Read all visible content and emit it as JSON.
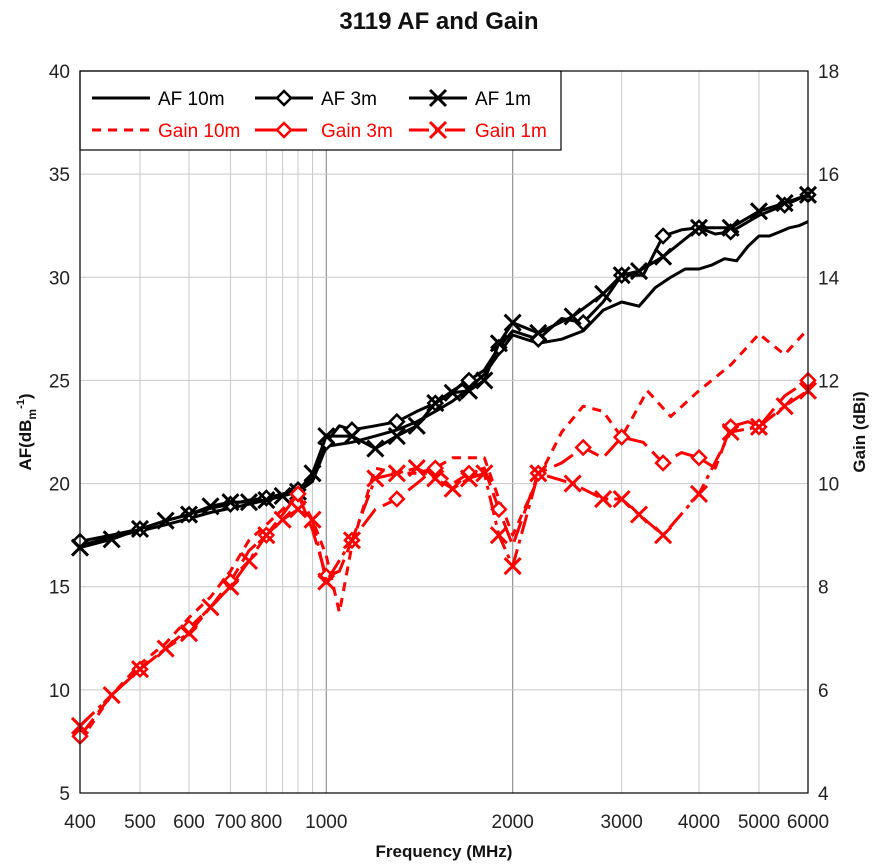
{
  "chart_data": {
    "type": "line",
    "title": "3119 AF and Gain",
    "xlabel": "Frequency (MHz)",
    "ylabel": "AF(dBm-1)",
    "ylabel_parts": {
      "main": "AF(dB",
      "sub": "m",
      "sup": "-1",
      "close": ")"
    },
    "y2label": "Gain (dBi)",
    "x_scale": "log",
    "xlim": [
      400,
      6000
    ],
    "ylim": [
      5,
      40
    ],
    "y2lim": [
      4,
      18
    ],
    "grid": true,
    "legend_position": "top-left",
    "x_ticks": [
      400,
      500,
      600,
      700,
      800,
      1000,
      2000,
      3000,
      4000,
      5000,
      6000
    ],
    "x_tick_labels": [
      "400",
      "500",
      "600",
      "700",
      "800",
      "1000",
      "2000",
      "3000",
      "4000",
      "5000",
      "6000"
    ],
    "y_ticks": [
      5,
      10,
      15,
      20,
      25,
      30,
      35,
      40
    ],
    "y_tick_labels": [
      "5",
      "10",
      "15",
      "20",
      "25",
      "30",
      "35",
      "40"
    ],
    "y2_ticks": [
      4,
      6,
      8,
      10,
      12,
      14,
      16,
      18
    ],
    "y2_tick_labels": [
      "4",
      "6",
      "8",
      "10",
      "12",
      "14",
      "16",
      "18"
    ],
    "series": [
      {
        "name": "AF 10m",
        "axis": "left",
        "color": "#000000",
        "dash": "solid",
        "marker": "none",
        "x": [
          400,
          450,
          500,
          550,
          600,
          650,
          700,
          750,
          800,
          850,
          900,
          950,
          1000,
          1100,
          1200,
          1300,
          1400,
          1500,
          1600,
          1700,
          1800,
          1900,
          2000,
          2200,
          2400,
          2600,
          2800,
          3000,
          3200,
          3400,
          3600,
          3800,
          4000,
          4200,
          4400,
          4600,
          4800,
          5000,
          5200,
          5400,
          5600,
          5800,
          6000
        ],
        "y": [
          17.0,
          17.4,
          17.7,
          18.0,
          18.3,
          18.6,
          18.8,
          19.0,
          19.2,
          19.4,
          19.6,
          20.1,
          21.8,
          22.0,
          22.3,
          22.6,
          23.0,
          23.5,
          24.0,
          24.6,
          25.3,
          26.3,
          27.2,
          26.8,
          27.0,
          27.4,
          28.4,
          28.8,
          28.6,
          29.5,
          30.0,
          30.4,
          30.4,
          30.6,
          30.9,
          30.8,
          31.5,
          32.0,
          32.0,
          32.2,
          32.4,
          32.5,
          32.7
        ]
      },
      {
        "name": "AF 3m",
        "axis": "left",
        "color": "#000000",
        "dash": "solid",
        "marker": "diamond",
        "x": [
          400,
          450,
          500,
          550,
          600,
          650,
          700,
          750,
          800,
          850,
          900,
          950,
          1000,
          1050,
          1100,
          1200,
          1300,
          1400,
          1500,
          1600,
          1700,
          1800,
          1900,
          2000,
          2200,
          2400,
          2600,
          2800,
          3000,
          3250,
          3500,
          3750,
          4000,
          4250,
          4500,
          5000,
          5500,
          6000
        ],
        "y": [
          17.2,
          17.5,
          17.8,
          18.2,
          18.5,
          18.8,
          19.0,
          19.2,
          19.3,
          19.5,
          19.7,
          20.3,
          22.0,
          22.8,
          22.6,
          22.8,
          23.0,
          23.5,
          23.9,
          24.5,
          25.0,
          25.5,
          26.6,
          27.4,
          27.0,
          28.0,
          27.8,
          28.8,
          30.1,
          30.1,
          32.0,
          32.3,
          32.4,
          32.1,
          32.2,
          33.0,
          33.5,
          34.0
        ]
      },
      {
        "name": "AF 1m",
        "axis": "left",
        "color": "#000000",
        "dash": "solid",
        "marker": "x",
        "x": [
          400,
          450,
          500,
          550,
          600,
          650,
          700,
          750,
          800,
          850,
          900,
          950,
          1000,
          1100,
          1200,
          1300,
          1400,
          1500,
          1600,
          1700,
          1800,
          1900,
          2000,
          2200,
          2500,
          2800,
          3000,
          3200,
          3500,
          4000,
          4500,
          5000,
          5500,
          6000
        ],
        "y": [
          16.9,
          17.3,
          17.8,
          18.2,
          18.5,
          18.9,
          19.1,
          19.1,
          19.2,
          19.4,
          19.6,
          20.5,
          22.3,
          22.3,
          21.7,
          22.3,
          22.8,
          23.9,
          24.4,
          24.5,
          25.0,
          26.8,
          27.8,
          27.3,
          28.1,
          29.2,
          30.1,
          30.3,
          31.0,
          32.4,
          32.4,
          33.2,
          33.6,
          34.0
        ]
      },
      {
        "name": "Gain 10m",
        "axis": "right",
        "color": "#ff0000",
        "dash": "short",
        "marker": "none",
        "x": [
          400,
          450,
          500,
          550,
          600,
          650,
          700,
          750,
          800,
          850,
          900,
          950,
          1000,
          1050,
          1100,
          1200,
          1300,
          1400,
          1500,
          1600,
          1700,
          1800,
          1900,
          2000,
          2200,
          2400,
          2600,
          2800,
          3000,
          3300,
          3600,
          4000,
          4500,
          5000,
          5500,
          6000
        ],
        "y": [
          5.0,
          5.9,
          6.5,
          6.9,
          7.4,
          7.8,
          8.3,
          8.9,
          9.2,
          9.5,
          9.8,
          9.3,
          8.6,
          7.5,
          8.8,
          10.3,
          10.2,
          10.2,
          10.3,
          10.5,
          10.5,
          10.5,
          9.7,
          9.0,
          10.1,
          11.0,
          11.5,
          11.4,
          10.9,
          11.8,
          11.3,
          11.8,
          12.3,
          12.9,
          12.5,
          13.0
        ]
      },
      {
        "name": "Gain 3m",
        "axis": "right",
        "color": "#ff0000",
        "dash": "long",
        "marker": "diamond",
        "x": [
          400,
          450,
          500,
          550,
          600,
          650,
          700,
          750,
          800,
          850,
          900,
          950,
          1000,
          1050,
          1100,
          1200,
          1300,
          1400,
          1500,
          1600,
          1700,
          1800,
          1900,
          2000,
          2200,
          2400,
          2600,
          2800,
          3000,
          3250,
          3500,
          3750,
          4000,
          4250,
          4500,
          4800,
          5000,
          5500,
          6000
        ],
        "y": [
          5.1,
          5.9,
          6.4,
          6.8,
          7.2,
          7.6,
          8.1,
          8.7,
          9.0,
          9.4,
          9.8,
          9.1,
          8.2,
          8.3,
          8.9,
          9.5,
          9.7,
          10.0,
          10.3,
          10.0,
          10.2,
          10.3,
          9.5,
          8.8,
          10.2,
          10.4,
          10.7,
          10.5,
          10.9,
          10.8,
          10.4,
          10.6,
          10.5,
          10.3,
          11.1,
          11.2,
          11.1,
          11.7,
          12.0
        ]
      },
      {
        "name": "Gain 1m",
        "axis": "right",
        "color": "#ff0000",
        "dash": "dashdot",
        "marker": "x",
        "x": [
          400,
          450,
          500,
          550,
          600,
          650,
          700,
          750,
          800,
          850,
          900,
          950,
          1000,
          1100,
          1200,
          1300,
          1400,
          1500,
          1600,
          1700,
          1800,
          1900,
          2000,
          2200,
          2500,
          2800,
          3000,
          3200,
          3500,
          4000,
          4500,
          5000,
          5500,
          6000
        ],
        "y": [
          5.3,
          5.9,
          6.4,
          6.8,
          7.1,
          7.6,
          8.0,
          8.5,
          9.0,
          9.3,
          9.5,
          9.3,
          8.1,
          8.9,
          10.1,
          10.2,
          10.3,
          10.1,
          9.9,
          10.1,
          10.2,
          9.0,
          8.4,
          10.2,
          10.0,
          9.7,
          9.7,
          9.4,
          9.0,
          9.8,
          11.0,
          11.1,
          11.5,
          11.8
        ]
      }
    ]
  }
}
